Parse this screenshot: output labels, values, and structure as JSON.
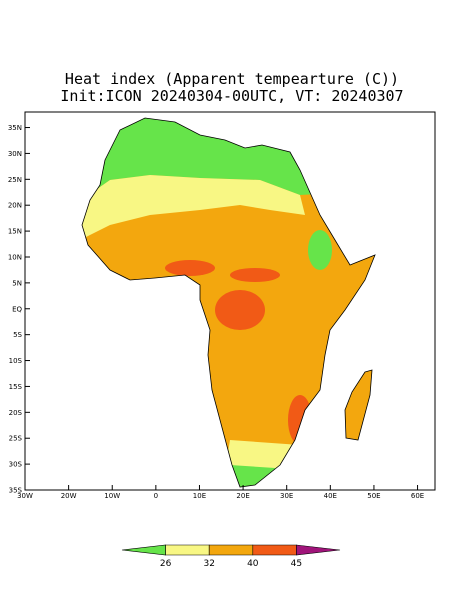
{
  "chart_data": {
    "type": "map",
    "title": "Heat index (Apparent tempearture (C))",
    "subtitle": "Init:ICON 20240304-00UTC, VT: 20240307",
    "xlim": [
      -30,
      64
    ],
    "ylim": [
      -35,
      38
    ],
    "xticks": [
      {
        "value": -30,
        "label": "30W"
      },
      {
        "value": -20,
        "label": "20W"
      },
      {
        "value": -10,
        "label": "10W"
      },
      0,
      {
        "value": 10,
        "label": "10E"
      },
      {
        "value": 20,
        "label": "20E"
      },
      {
        "value": 30,
        "label": "30E"
      },
      {
        "value": 40,
        "label": "40E"
      },
      {
        "value": 50,
        "label": "50E"
      },
      {
        "value": 60,
        "label": "60E"
      }
    ],
    "yticks": [
      {
        "value": 35,
        "label": "35N"
      },
      {
        "value": 30,
        "label": "30N"
      },
      {
        "value": 25,
        "label": "25N"
      },
      {
        "value": 20,
        "label": "20N"
      },
      {
        "value": 15,
        "label": "15N"
      },
      {
        "value": 10,
        "label": "10N"
      },
      {
        "value": 5,
        "label": "5N"
      },
      {
        "value": 0,
        "label": "EQ"
      },
      {
        "value": -5,
        "label": "5S"
      },
      {
        "value": -10,
        "label": "10S"
      },
      {
        "value": -15,
        "label": "15S"
      },
      {
        "value": -20,
        "label": "20S"
      },
      {
        "value": -25,
        "label": "25S"
      },
      {
        "value": -30,
        "label": "30S"
      },
      {
        "value": -35,
        "label": "35S"
      }
    ],
    "colorbar": {
      "levels": [
        26,
        32,
        40,
        45
      ],
      "colors": [
        "#66e44a",
        "#f8f784",
        "#f3a70e",
        "#f15a16",
        "#a0147a"
      ]
    }
  }
}
